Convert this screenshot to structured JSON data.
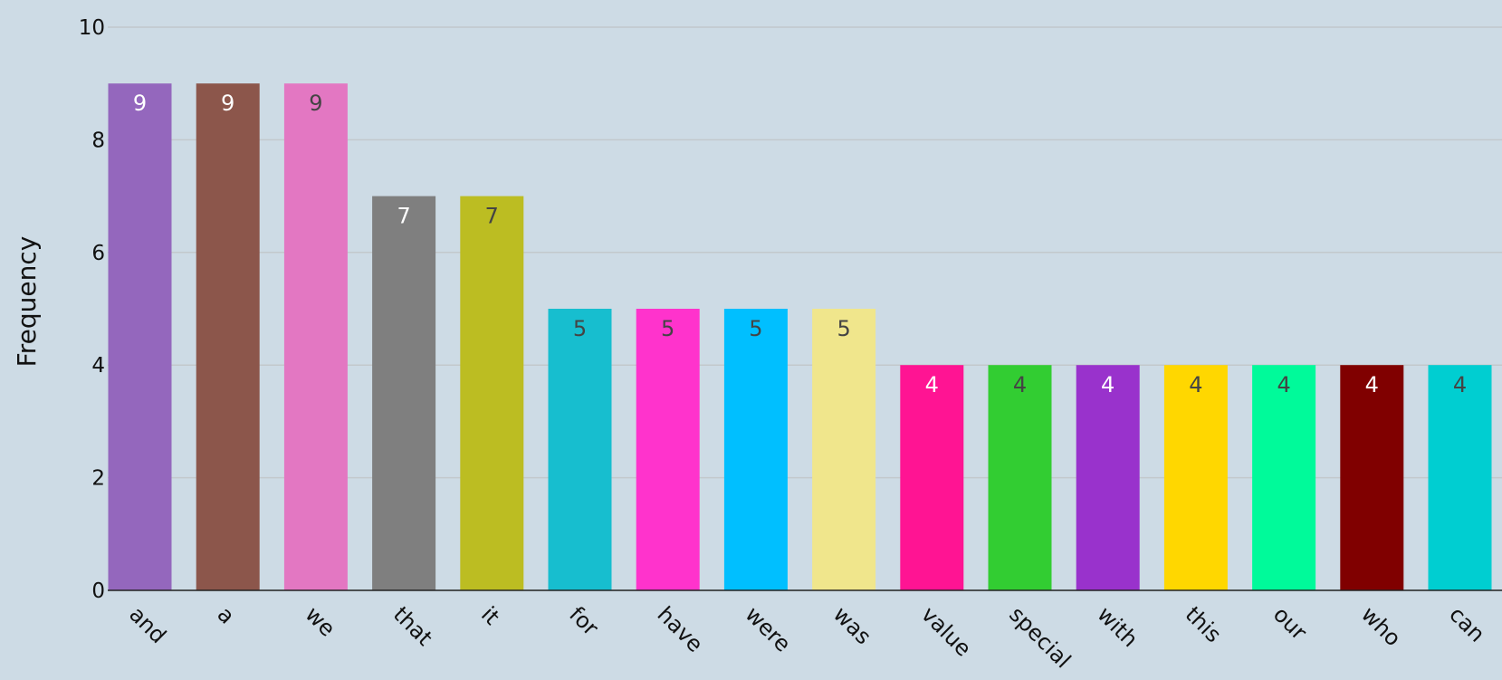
{
  "chart_data": {
    "type": "bar",
    "title": "",
    "xlabel": "",
    "ylabel": "Frequency",
    "ylim": [
      0,
      10
    ],
    "y_ticks": [
      "0",
      "2",
      "4",
      "6",
      "8",
      "10"
    ],
    "grid": "horizontal",
    "categories": [
      "and",
      "a",
      "we",
      "that",
      "it",
      "for",
      "have",
      "were",
      "was",
      "value",
      "special",
      "with",
      "this",
      "our",
      "who",
      "can"
    ],
    "values": [
      9,
      9,
      9,
      7,
      7,
      5,
      5,
      5,
      5,
      4,
      4,
      4,
      4,
      4,
      4,
      4
    ],
    "data_labels": [
      "9",
      "9",
      "9",
      "7",
      "7",
      "5",
      "5",
      "5",
      "5",
      "4",
      "4",
      "4",
      "4",
      "4",
      "4",
      "4"
    ],
    "bar_colors": [
      "#9467bd",
      "#8c564b",
      "#e377c2",
      "#7f7f7f",
      "#bcbd22",
      "#17becf",
      "#ff33cc",
      "#00bfff",
      "#f0e68c",
      "#ff1493",
      "#32cd32",
      "#9932cc",
      "#ffd700",
      "#00fa9a",
      "#800000",
      "#00ced1"
    ],
    "label_colors": [
      "#ffffff",
      "#ffffff",
      "#444444",
      "#ffffff",
      "#444444",
      "#444444",
      "#444444",
      "#444444",
      "#444444",
      "#ffffff",
      "#444444",
      "#ffffff",
      "#444444",
      "#444444",
      "#ffffff",
      "#444444"
    ],
    "colors": {
      "background": "#cddbe5",
      "grid": "#c2c8cc",
      "axis_line": "#222222",
      "text": "#111111"
    }
  }
}
